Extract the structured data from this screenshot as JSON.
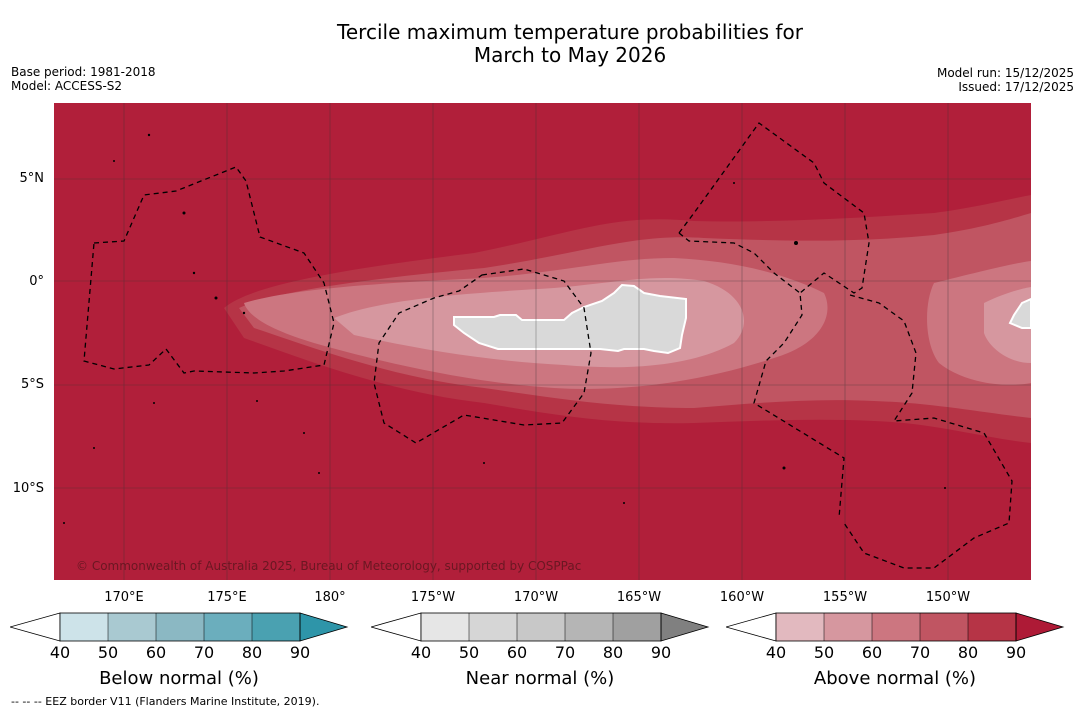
{
  "title_line1": "Tercile maximum temperature probabilities for",
  "title_line2": "March to May 2026",
  "base_period": "Base period: 1981-2018",
  "model": "Model: ACCESS-S2",
  "model_run": "Model run: 15/12/2025",
  "issued": "Issued: 17/12/2025",
  "copyright": "© Commonwealth of Australia 2025, Bureau of Meteorology, supported by COSPPac",
  "lat_labels": [
    "5°N",
    "0°",
    "5°S",
    "10°S"
  ],
  "lon_labels": [
    "170°E",
    "175°E",
    "180°",
    "175°W",
    "170°W",
    "165°W",
    "160°W",
    "155°W",
    "150°W"
  ],
  "colorbars": [
    {
      "title": "Below normal (%)",
      "ticks": [
        "40",
        "50",
        "60",
        "70",
        "80",
        "90"
      ],
      "colors": [
        "#cde3e9",
        "#a9c9d1",
        "#8bb8c3",
        "#6baebd",
        "#4aa1b1",
        "#2e95a9"
      ]
    },
    {
      "title": "Near normal (%)",
      "ticks": [
        "40",
        "50",
        "60",
        "70",
        "80",
        "90"
      ],
      "colors": [
        "#e6e6e6",
        "#d6d6d6",
        "#c8c8c8",
        "#b5b5b5",
        "#a0a0a0",
        "#808080"
      ]
    },
    {
      "title": "Above normal (%)",
      "ticks": [
        "40",
        "50",
        "60",
        "70",
        "80",
        "90"
      ],
      "colors": [
        "#e2b9bf",
        "#d6979f",
        "#cc7680",
        "#c05562",
        "#b63446",
        "#ae1a36"
      ]
    }
  ],
  "footnote": "--  --  -- EEZ border V11 (Flanders Marine Institute, 2019).",
  "colors": {
    "above90": "#b11f3a",
    "above80": "#b63446",
    "above70": "#c05562",
    "above60": "#cc7680",
    "above50": "#d6979f",
    "near": "#d9d9d9"
  }
}
